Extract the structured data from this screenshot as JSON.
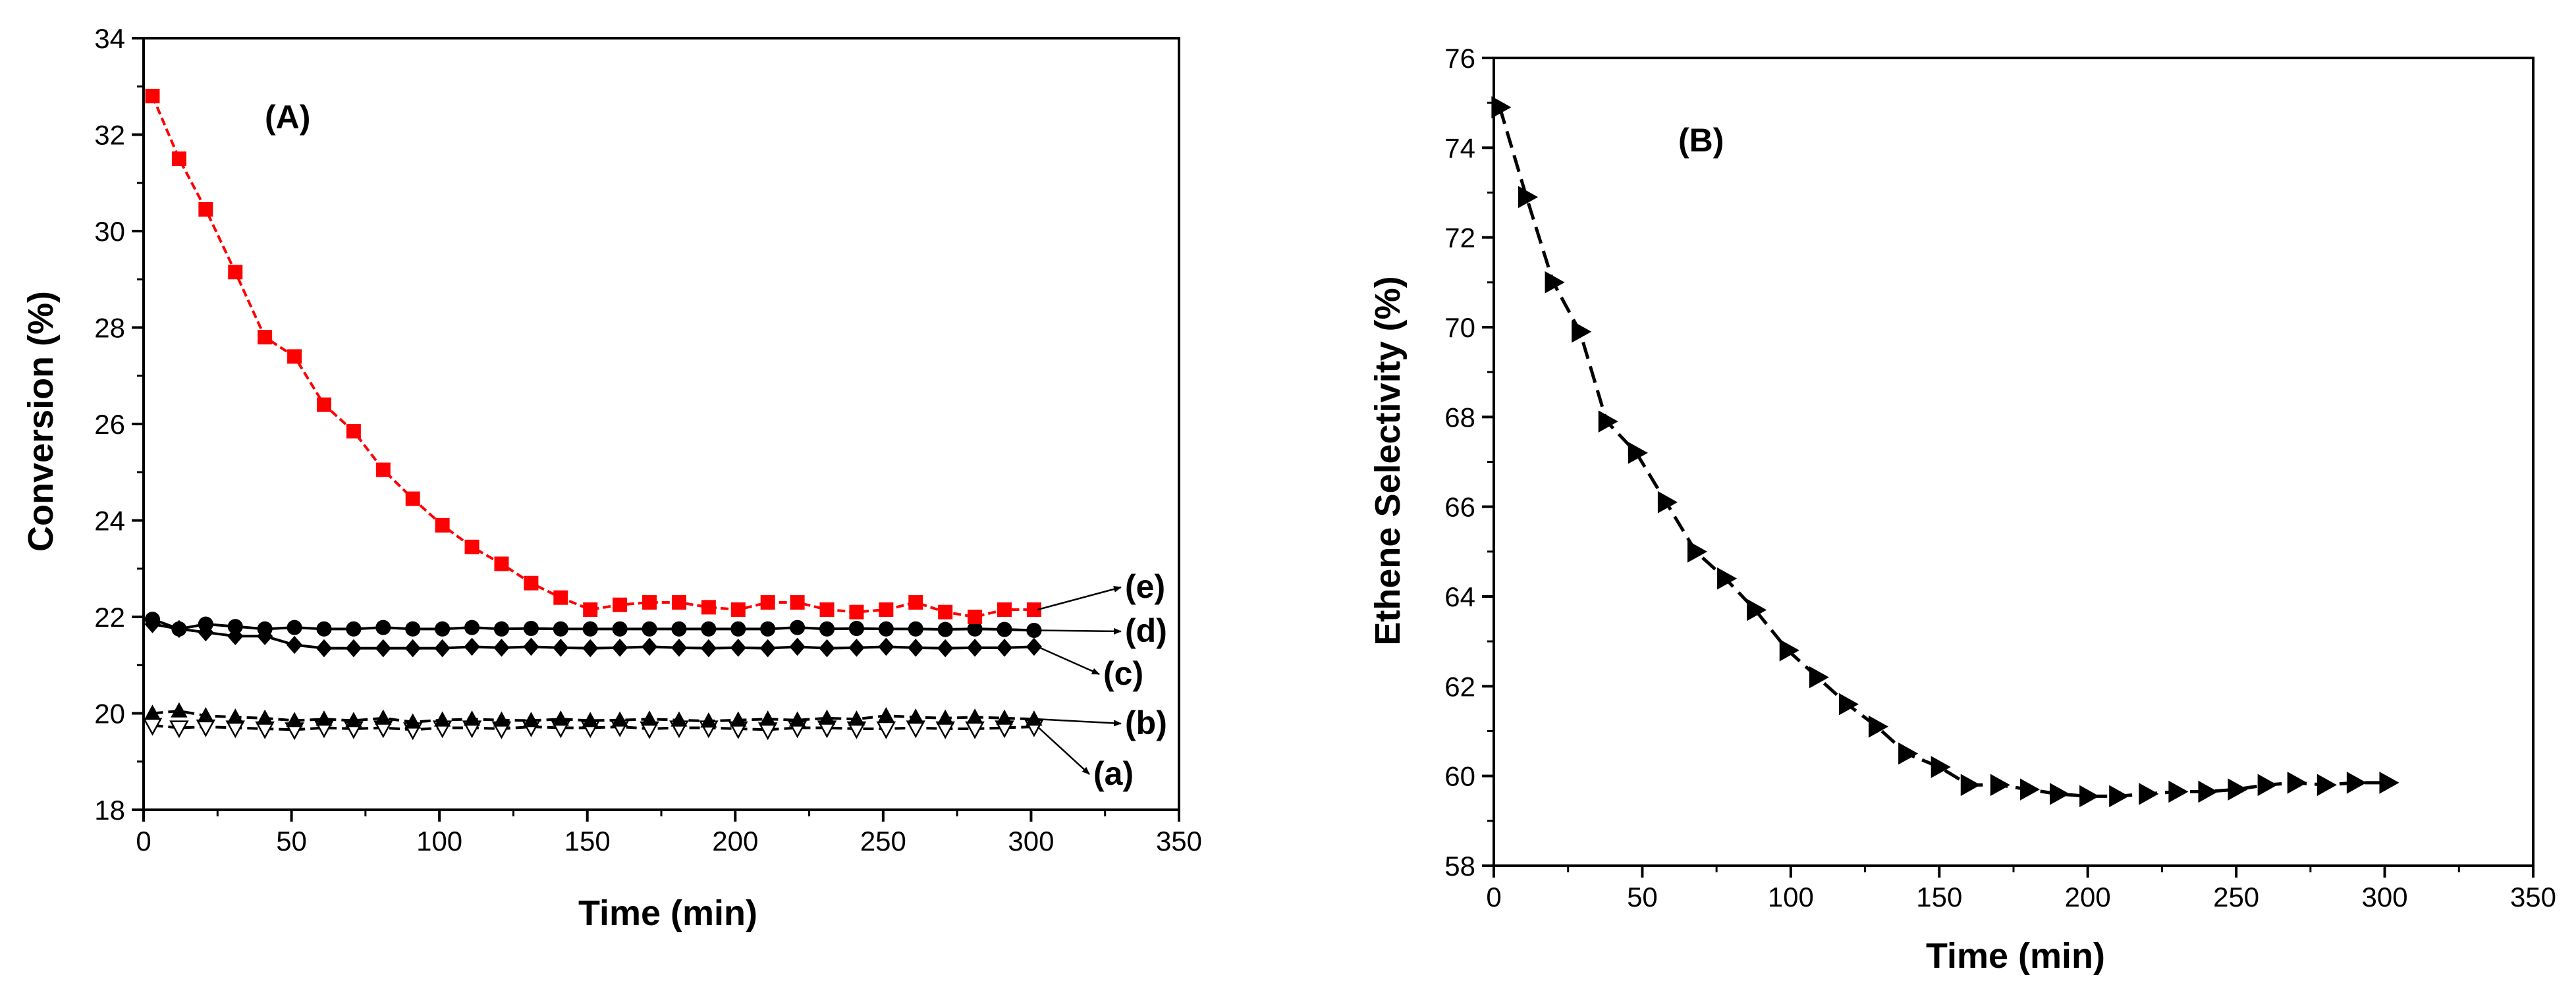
{
  "chart_data": [
    {
      "type": "line",
      "panel_label": "(A)",
      "xlabel": "Time (min)",
      "ylabel": "Conversion (%)",
      "xlim": [
        0,
        350
      ],
      "ylim": [
        18,
        34
      ],
      "xticks": [
        0,
        50,
        100,
        150,
        200,
        250,
        300,
        350
      ],
      "yticks": [
        18,
        20,
        22,
        24,
        26,
        28,
        30,
        32,
        34
      ],
      "x": [
        3,
        12,
        21,
        31,
        41,
        51,
        61,
        71,
        81,
        91,
        101,
        111,
        121,
        131,
        141,
        151,
        161,
        171,
        181,
        191,
        201,
        211,
        221,
        231,
        241,
        251,
        261,
        271,
        281,
        291,
        301
      ],
      "series": [
        {
          "name": "(a)",
          "marker": "open-triangle-down",
          "color": "#000000",
          "values": [
            19.75,
            19.7,
            19.72,
            19.7,
            19.68,
            19.66,
            19.7,
            19.68,
            19.7,
            19.66,
            19.7,
            19.7,
            19.68,
            19.72,
            19.7,
            19.7,
            19.72,
            19.68,
            19.7,
            19.7,
            19.68,
            19.66,
            19.7,
            19.7,
            19.68,
            19.68,
            19.7,
            19.68,
            19.68,
            19.7,
            19.72
          ]
        },
        {
          "name": "(b)",
          "marker": "filled-triangle-up",
          "color": "#000000",
          "values": [
            20.0,
            20.05,
            19.95,
            19.92,
            19.9,
            19.85,
            19.88,
            19.85,
            19.9,
            19.82,
            19.86,
            19.88,
            19.86,
            19.85,
            19.88,
            19.85,
            19.86,
            19.88,
            19.86,
            19.84,
            19.86,
            19.88,
            19.86,
            19.9,
            19.88,
            19.95,
            19.92,
            19.9,
            19.92,
            19.9,
            19.88
          ]
        },
        {
          "name": "(c)",
          "marker": "filled-diamond",
          "color": "#000000",
          "values": [
            21.85,
            21.75,
            21.68,
            21.6,
            21.6,
            21.42,
            21.35,
            21.35,
            21.35,
            21.35,
            21.35,
            21.38,
            21.36,
            21.38,
            21.36,
            21.35,
            21.36,
            21.38,
            21.36,
            21.35,
            21.36,
            21.35,
            21.38,
            21.35,
            21.36,
            21.38,
            21.36,
            21.35,
            21.36,
            21.36,
            21.38
          ]
        },
        {
          "name": "(d)",
          "marker": "filled-circle",
          "color": "#000000",
          "values": [
            21.95,
            21.75,
            21.85,
            21.8,
            21.75,
            21.78,
            21.75,
            21.75,
            21.78,
            21.75,
            21.75,
            21.78,
            21.75,
            21.76,
            21.75,
            21.75,
            21.75,
            21.75,
            21.75,
            21.75,
            21.75,
            21.75,
            21.78,
            21.75,
            21.76,
            21.75,
            21.75,
            21.74,
            21.75,
            21.74,
            21.72
          ]
        },
        {
          "name": "(e)",
          "marker": "filled-square",
          "color": "#ff0000",
          "values": [
            32.8,
            31.5,
            30.45,
            29.15,
            27.8,
            27.4,
            26.4,
            25.85,
            25.05,
            24.45,
            23.9,
            23.45,
            23.1,
            22.7,
            22.4,
            22.15,
            22.25,
            22.3,
            22.3,
            22.2,
            22.15,
            22.3,
            22.3,
            22.15,
            22.1,
            22.15,
            22.3,
            22.1,
            22.0,
            22.15,
            22.15
          ]
        }
      ]
    },
    {
      "type": "line",
      "panel_label": "(B)",
      "xlabel": "Time (min)",
      "ylabel": "Ethene Selectivity (%)",
      "xlim": [
        0,
        350
      ],
      "ylim": [
        58,
        76
      ],
      "xticks": [
        0,
        50,
        100,
        150,
        200,
        250,
        300,
        350
      ],
      "yticks": [
        58,
        60,
        62,
        64,
        66,
        68,
        70,
        72,
        74,
        76
      ],
      "series": [
        {
          "name": "Ethene Selectivity",
          "marker": "filled-triangle-right",
          "color": "#000000",
          "x": [
            2,
            11,
            20,
            29,
            38,
            48,
            58,
            68,
            78,
            88,
            99,
            109,
            119,
            129,
            139,
            150,
            160,
            170,
            180,
            190,
            200,
            210,
            220,
            230,
            240,
            250,
            260,
            270,
            280,
            290,
            301
          ],
          "values": [
            74.9,
            72.9,
            71.0,
            69.9,
            67.9,
            67.2,
            66.1,
            65.0,
            64.4,
            63.7,
            62.8,
            62.2,
            61.6,
            61.1,
            60.5,
            60.2,
            59.8,
            59.8,
            59.7,
            59.6,
            59.55,
            59.55,
            59.6,
            59.65,
            59.65,
            59.7,
            59.8,
            59.85,
            59.8,
            59.85,
            59.85
          ]
        }
      ]
    }
  ]
}
